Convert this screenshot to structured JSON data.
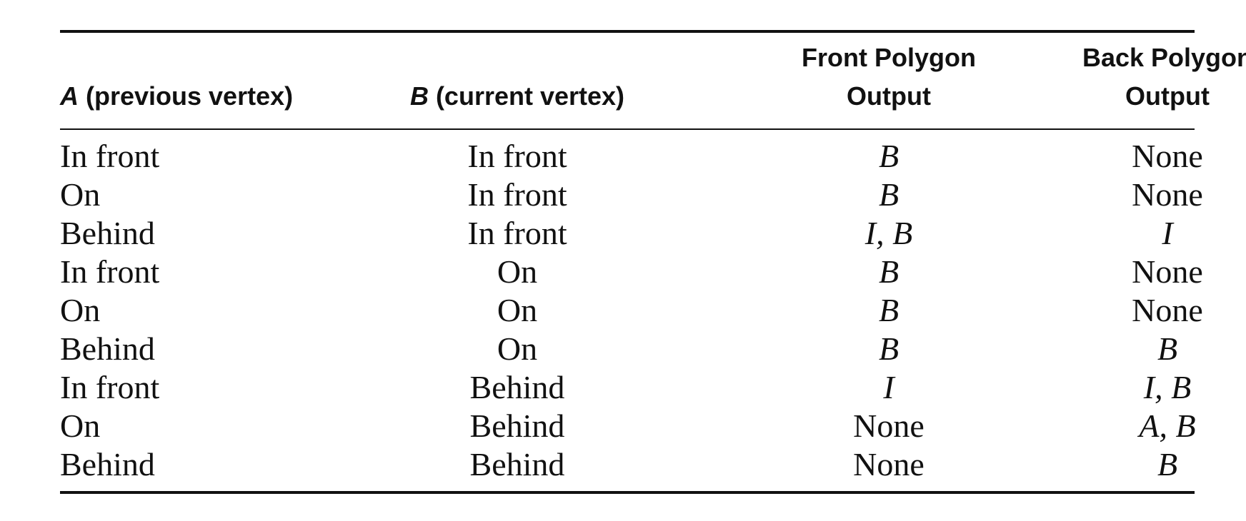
{
  "table": {
    "headers": {
      "a_var": "A",
      "a_label": " (previous vertex)",
      "b_var": "B",
      "b_label": " (current vertex)",
      "front_line1": "Front Polygon",
      "front_line2": "Output",
      "back_line1": "Back Polygon",
      "back_line2": "Output"
    },
    "rows": [
      {
        "a": "In front",
        "b": "In front",
        "front": "B",
        "back": "None"
      },
      {
        "a": "On",
        "b": "In front",
        "front": "B",
        "back": "None"
      },
      {
        "a": "Behind",
        "b": "In front",
        "front": "I, B",
        "back": "I"
      },
      {
        "a": "In front",
        "b": "On",
        "front": "B",
        "back": "None"
      },
      {
        "a": "On",
        "b": "On",
        "front": "B",
        "back": "None"
      },
      {
        "a": "Behind",
        "b": "On",
        "front": "B",
        "back": "B"
      },
      {
        "a": "In front",
        "b": "Behind",
        "front": "I",
        "back": "I, B"
      },
      {
        "a": "On",
        "b": "Behind",
        "front": "None",
        "back": "A, B"
      },
      {
        "a": "Behind",
        "b": "Behind",
        "front": "None",
        "back": "B"
      }
    ]
  }
}
